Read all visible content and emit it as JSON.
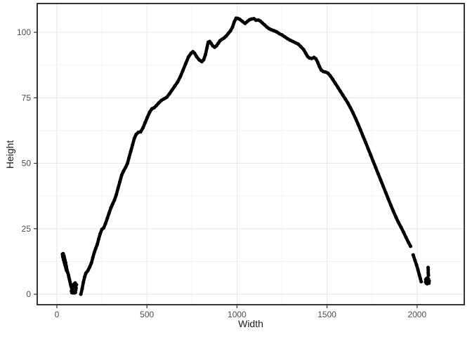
{
  "figure": {
    "background": "#ffffff"
  },
  "chart_data": {
    "type": "scatter",
    "title": "",
    "xlabel": "Width",
    "ylabel": "Height",
    "xlim": [
      -109,
      2262
    ],
    "ylim": [
      -4,
      111
    ],
    "x_major_ticks": [
      0,
      500,
      1000,
      1500,
      2000
    ],
    "y_major_ticks": [
      0,
      25,
      50,
      75,
      100
    ],
    "x_minor_ticks": [
      250,
      750,
      1250,
      1750,
      2250
    ],
    "y_minor_ticks": [
      12.5,
      37.5,
      62.5,
      87.5
    ],
    "grid": true,
    "legend": false,
    "point_color": "#000000",
    "point_radius": 2.5,
    "line_width": 4.6,
    "panel_border_color": "#1f1f1f",
    "major_grid_color": "#e8e8e8",
    "minor_grid_color": "#f4f4f4",
    "tick_color": "#333333",
    "tick_label_color": "#4d4d4d",
    "axis_title_color": "#1a1a1a",
    "series": [
      {
        "name": "main-curve-left-to-right",
        "connect": true,
        "points": [
          [
            133,
            0
          ],
          [
            140,
            2
          ],
          [
            147,
            4.5
          ],
          [
            154,
            6.5
          ],
          [
            161,
            8
          ],
          [
            172,
            9
          ],
          [
            183,
            10.5
          ],
          [
            192,
            12
          ],
          [
            200,
            14
          ],
          [
            208,
            16
          ],
          [
            216,
            17.5
          ],
          [
            224,
            19
          ],
          [
            232,
            21
          ],
          [
            240,
            23
          ],
          [
            250,
            24.8
          ],
          [
            260,
            25.3
          ],
          [
            270,
            27
          ],
          [
            280,
            29
          ],
          [
            290,
            31
          ],
          [
            300,
            33
          ],
          [
            310,
            34.5
          ],
          [
            320,
            36
          ],
          [
            330,
            38
          ],
          [
            340,
            40.5
          ],
          [
            350,
            43
          ],
          [
            360,
            45.5
          ],
          [
            370,
            47
          ],
          [
            382,
            48.5
          ],
          [
            392,
            50
          ],
          [
            400,
            52
          ],
          [
            410,
            54.5
          ],
          [
            420,
            57
          ],
          [
            430,
            59.5
          ],
          [
            440,
            61
          ],
          [
            452,
            61.8
          ],
          [
            465,
            62
          ],
          [
            478,
            63.5
          ],
          [
            490,
            65.5
          ],
          [
            502,
            67.5
          ],
          [
            515,
            69.5
          ],
          [
            528,
            70.8
          ],
          [
            540,
            71.2
          ],
          [
            552,
            72
          ],
          [
            565,
            73
          ],
          [
            580,
            74
          ],
          [
            595,
            74.6
          ],
          [
            610,
            75.2
          ],
          [
            625,
            76.5
          ],
          [
            640,
            78
          ],
          [
            655,
            79.5
          ],
          [
            670,
            81
          ],
          [
            685,
            83
          ],
          [
            700,
            85.5
          ],
          [
            715,
            88
          ],
          [
            730,
            90.5
          ],
          [
            745,
            92
          ],
          [
            755,
            92.6
          ],
          [
            765,
            92
          ],
          [
            775,
            90.8
          ],
          [
            790,
            89.5
          ],
          [
            805,
            88.8
          ],
          [
            815,
            89.5
          ],
          [
            825,
            91.5
          ],
          [
            833,
            94
          ],
          [
            840,
            96.2
          ],
          [
            848,
            96.5
          ],
          [
            856,
            95.8
          ],
          [
            866,
            94.8
          ],
          [
            876,
            94.3
          ],
          [
            886,
            94.8
          ],
          [
            896,
            95.8
          ],
          [
            906,
            96.8
          ],
          [
            916,
            97.3
          ],
          [
            928,
            97.8
          ],
          [
            940,
            98.6
          ],
          [
            952,
            99.6
          ],
          [
            964,
            100.6
          ],
          [
            975,
            102
          ],
          [
            985,
            104
          ],
          [
            995,
            105.4
          ],
          [
            1005,
            105.3
          ],
          [
            1015,
            105
          ],
          [
            1030,
            104.2
          ],
          [
            1045,
            103.4
          ],
          [
            1058,
            104.2
          ],
          [
            1070,
            104.8
          ],
          [
            1082,
            105.1
          ],
          [
            1094,
            105.2
          ],
          [
            1106,
            104.6
          ],
          [
            1118,
            104.7
          ],
          [
            1130,
            104.3
          ],
          [
            1142,
            103.5
          ],
          [
            1154,
            102.8
          ],
          [
            1166,
            102
          ],
          [
            1178,
            101.4
          ],
          [
            1190,
            101
          ],
          [
            1205,
            100.6
          ],
          [
            1220,
            100.2
          ],
          [
            1235,
            99.5
          ],
          [
            1250,
            99
          ],
          [
            1265,
            98.3
          ],
          [
            1280,
            97.6
          ],
          [
            1295,
            97
          ],
          [
            1310,
            96.5
          ],
          [
            1325,
            96
          ],
          [
            1340,
            95.5
          ],
          [
            1355,
            94.5
          ],
          [
            1370,
            93.4
          ],
          [
            1382,
            92
          ],
          [
            1392,
            90.8
          ],
          [
            1402,
            90.2
          ],
          [
            1415,
            90
          ],
          [
            1428,
            90.4
          ],
          [
            1438,
            89.9
          ],
          [
            1448,
            88.6
          ],
          [
            1458,
            86.9
          ],
          [
            1468,
            85.6
          ],
          [
            1480,
            85
          ],
          [
            1492,
            84.8
          ],
          [
            1505,
            84.4
          ],
          [
            1518,
            83.4
          ],
          [
            1532,
            82
          ],
          [
            1546,
            80.5
          ],
          [
            1560,
            79
          ],
          [
            1574,
            77.5
          ],
          [
            1588,
            76
          ],
          [
            1602,
            74.5
          ],
          [
            1616,
            73
          ],
          [
            1630,
            71.2
          ],
          [
            1644,
            69.3
          ],
          [
            1658,
            67.2
          ],
          [
            1672,
            65
          ],
          [
            1686,
            62.7
          ],
          [
            1700,
            60.3
          ],
          [
            1714,
            58
          ],
          [
            1728,
            55.6
          ],
          [
            1742,
            53.2
          ],
          [
            1756,
            50.8
          ],
          [
            1770,
            48.4
          ],
          [
            1784,
            46
          ],
          [
            1798,
            43.6
          ],
          [
            1812,
            41.2
          ],
          [
            1826,
            38.8
          ],
          [
            1840,
            36.4
          ],
          [
            1854,
            34
          ],
          [
            1868,
            31.7
          ],
          [
            1882,
            29.5
          ],
          [
            1896,
            27.5
          ],
          [
            1910,
            25.7
          ],
          [
            1924,
            23.8
          ],
          [
            1938,
            21.8
          ],
          [
            1952,
            19.8
          ],
          [
            1964,
            18.3
          ]
        ]
      },
      {
        "name": "main-curve-tail-after-gap",
        "connect": true,
        "points": [
          [
            1978,
            15
          ],
          [
            1988,
            13
          ],
          [
            1997,
            11.2
          ],
          [
            2005,
            9.3
          ],
          [
            2012,
            7.5
          ],
          [
            2018,
            6
          ],
          [
            2023,
            4.8
          ]
        ]
      },
      {
        "name": "left-cluster-streak",
        "connect": true,
        "points": [
          [
            56,
            9.3
          ],
          [
            53,
            10.5
          ],
          [
            49,
            12
          ],
          [
            45,
            13
          ],
          [
            40,
            14.5
          ],
          [
            35,
            15.5
          ],
          [
            31,
            15.3
          ],
          [
            33,
            14.3
          ],
          [
            37,
            13.2
          ],
          [
            42,
            12
          ],
          [
            46,
            11
          ],
          [
            50,
            10
          ],
          [
            54,
            9
          ]
        ]
      },
      {
        "name": "left-cluster-tail",
        "connect": true,
        "points": [
          [
            56,
            9
          ],
          [
            60,
            8.3
          ],
          [
            64,
            7.4
          ],
          [
            67,
            6.5
          ],
          [
            70,
            5.6
          ],
          [
            73,
            4.7
          ],
          [
            76,
            3.8
          ],
          [
            79,
            3
          ],
          [
            82,
            2.3
          ],
          [
            85,
            1.7
          ]
        ]
      },
      {
        "name": "left-cluster-blob",
        "connect": false,
        "points": [
          [
            85,
            1.5
          ],
          [
            90,
            1
          ],
          [
            95,
            0.8
          ],
          [
            100,
            1
          ],
          [
            105,
            1.6
          ],
          [
            88,
            2.5
          ],
          [
            94,
            2.2
          ],
          [
            99,
            2.5
          ],
          [
            104,
            3.1
          ],
          [
            109,
            3.6
          ],
          [
            92,
            3.6
          ],
          [
            97,
            4
          ],
          [
            102,
            4.3
          ],
          [
            86,
            3.2
          ],
          [
            107,
            2.4
          ],
          [
            90,
            0.5
          ],
          [
            98,
            0.5
          ],
          [
            103,
            0.7
          ],
          [
            81,
            1.2
          ],
          [
            83,
            0.6
          ]
        ]
      },
      {
        "name": "right-cluster-dash",
        "connect": true,
        "points": [
          [
            2061,
            10.2
          ],
          [
            2062,
            9.2
          ],
          [
            2062,
            8.2
          ],
          [
            2063,
            7.2
          ]
        ]
      },
      {
        "name": "right-cluster-blob",
        "connect": false,
        "points": [
          [
            2048,
            5.6
          ],
          [
            2053,
            6
          ],
          [
            2058,
            6.2
          ],
          [
            2063,
            5.8
          ],
          [
            2067,
            5.1
          ],
          [
            2062,
            4.3
          ],
          [
            2056,
            4
          ],
          [
            2051,
            4.2
          ],
          [
            2047,
            4.7
          ],
          [
            2066,
            4.2
          ],
          [
            2060,
            5.2
          ],
          [
            2054,
            5.1
          ]
        ]
      }
    ]
  }
}
